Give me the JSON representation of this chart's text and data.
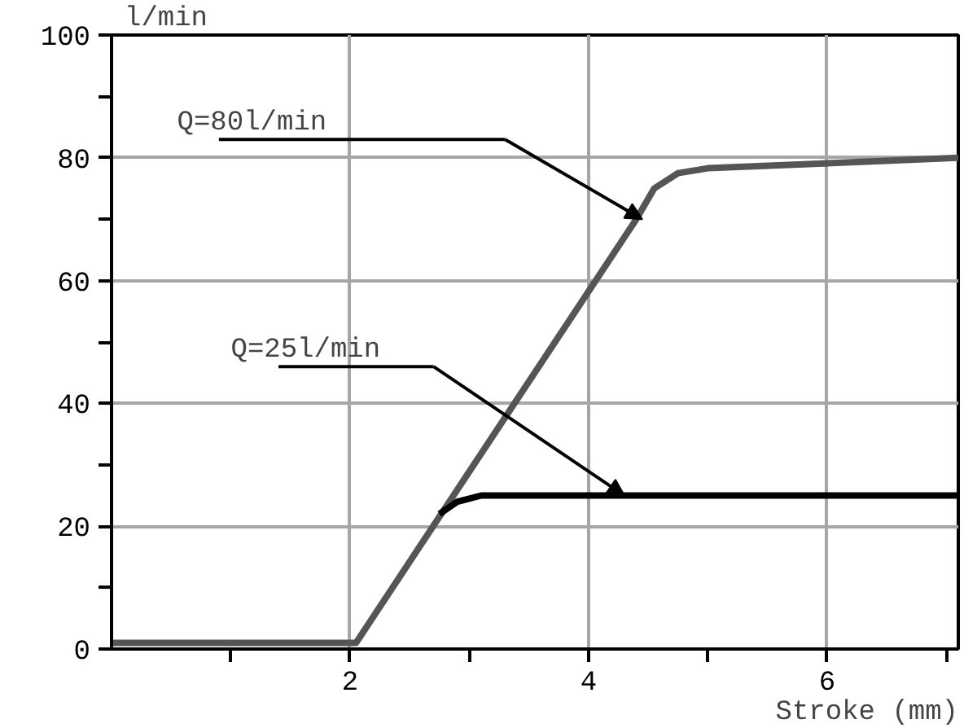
{
  "chart_data": {
    "type": "line",
    "xlabel": "Stroke (mm)",
    "ylabel": "l/min",
    "xlim": [
      0,
      7.1
    ],
    "ylim": [
      0,
      100
    ],
    "xticks": [
      {
        "value": 1,
        "label": null
      },
      2,
      {
        "value": 3,
        "label": null
      },
      4,
      {
        "value": 5,
        "label": null
      },
      6,
      {
        "value": 7,
        "label": null
      }
    ],
    "yticks": [
      0,
      {
        "value": 10,
        "label": null
      },
      20,
      {
        "value": 30,
        "label": null
      },
      40,
      {
        "value": 50,
        "label": null
      },
      60,
      {
        "value": 70,
        "label": null
      },
      80,
      {
        "value": 90,
        "label": null
      },
      100
    ],
    "grid": true,
    "line_style": "solid",
    "series": [
      {
        "color": "#555555",
        "x": [
          0,
          2.05,
          4.4,
          4.55,
          4.75,
          5.0,
          7.1
        ],
        "values": [
          1,
          1,
          70,
          75,
          77.5,
          78.3,
          80
        ]
      },
      {
        "color": "#000000",
        "x": [
          2.75,
          2.9,
          3.1,
          7.1
        ],
        "values": [
          22,
          24,
          25,
          25
        ]
      }
    ],
    "annotations": [
      "Q=80l/min",
      "Q=25l/min"
    ]
  }
}
